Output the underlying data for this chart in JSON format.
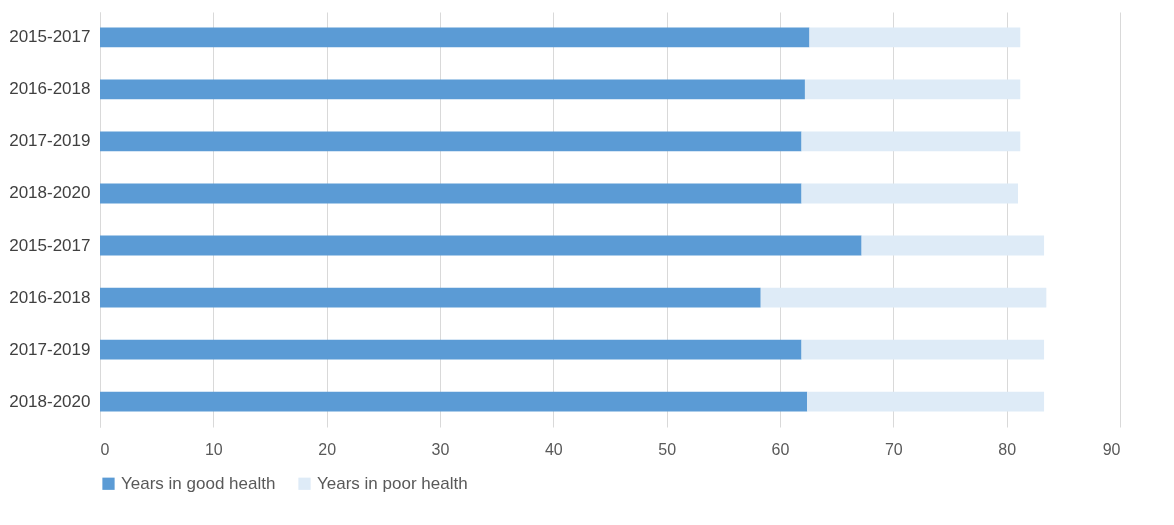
{
  "chart_data": {
    "type": "bar",
    "orientation": "horizontal",
    "stacked": true,
    "categories": [
      "2015-2017",
      "2016-2018",
      "2017-2019",
      "2018-2020",
      "2015-2017",
      "2016-2018",
      "2017-2019",
      "2018-2020"
    ],
    "series": [
      {
        "name": "Years in good health",
        "color": "#5b9bd5",
        "values": [
          62.6,
          62.2,
          61.9,
          61.9,
          67.2,
          58.3,
          61.9,
          62.4
        ]
      },
      {
        "name": "Years in poor health",
        "color": "#deebf7",
        "values": [
          18.6,
          19.0,
          19.3,
          19.1,
          16.1,
          25.2,
          21.4,
          20.9
        ]
      }
    ],
    "xlim": [
      0,
      90
    ],
    "xticks": [
      0,
      10,
      20,
      30,
      40,
      50,
      60,
      70,
      80,
      90
    ],
    "grid": "x",
    "legend": "bottom"
  }
}
